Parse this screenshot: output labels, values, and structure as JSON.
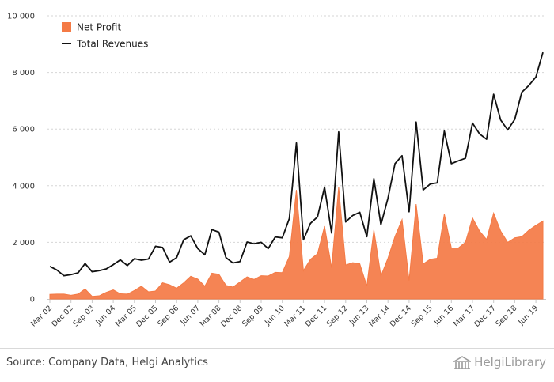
{
  "chart_data": {
    "type": "area",
    "x": [
      "Mar 02",
      "Jun 02",
      "Sep 02",
      "Dec 02",
      "Mar 03",
      "Jun 03",
      "Sep 03",
      "Dec 03",
      "Mar 04",
      "Jun 04",
      "Sep 04",
      "Dec 04",
      "Mar 05",
      "Jun 05",
      "Sep 05",
      "Dec 05",
      "Mar 06",
      "Jun 06",
      "Sep 06",
      "Dec 06",
      "Mar 07",
      "Jun 07",
      "Sep 07",
      "Dec 07",
      "Mar 08",
      "Jun 08",
      "Sep 08",
      "Dec 08",
      "Mar 09",
      "Jun 09",
      "Sep 09",
      "Dec 09",
      "Mar 10",
      "Jun 10",
      "Sep 10",
      "Dec 10",
      "Mar 11",
      "Jun 11",
      "Sep 11",
      "Dec 11",
      "Mar 12",
      "Jun 12",
      "Sep 12",
      "Dec 12",
      "Mar 13",
      "Jun 13",
      "Sep 13",
      "Dec 13",
      "Mar 14",
      "Jun 14",
      "Sep 14",
      "Dec 14",
      "Mar 15",
      "Jun 15",
      "Sep 15",
      "Dec 15",
      "Mar 16",
      "Jun 16",
      "Sep 16",
      "Dec 16",
      "Mar 17",
      "Jun 17",
      "Sep 17",
      "Dec 17",
      "Mar 18",
      "Jun 18",
      "Sep 18",
      "Dec 18",
      "Mar 19",
      "Jun 19",
      "Sep 19"
    ],
    "x_tick_labels": [
      "Mar 02",
      "Dec 02",
      "Sep 03",
      "Jun 04",
      "Mar 05",
      "Dec 05",
      "Sep 06",
      "Jun 07",
      "Mar 08",
      "Dec 08",
      "Sep 09",
      "Jun 10",
      "Mar 11",
      "Dec 11",
      "Sep 12",
      "Jun 13",
      "Mar 14",
      "Dec 14",
      "Sep 15",
      "Jun 16",
      "Mar 17",
      "Dec 17",
      "Sep 18",
      "Jun 19"
    ],
    "y_ticks": [
      0,
      2000,
      4000,
      6000,
      8000,
      10000
    ],
    "y_tick_labels": [
      "0",
      "2 000",
      "4 000",
      "6 000",
      "8 000",
      "10 000"
    ],
    "ylim": [
      0,
      10000
    ],
    "grid": "horizontal dashed",
    "legend_position": "top-left",
    "series": [
      {
        "name": "Net Profit",
        "type": "area",
        "color": "#f47a45",
        "values": [
          160,
          170,
          170,
          130,
          170,
          350,
          90,
          110,
          230,
          320,
          180,
          170,
          300,
          450,
          250,
          280,
          570,
          500,
          380,
          570,
          800,
          700,
          450,
          910,
          870,
          480,
          420,
          600,
          780,
          690,
          820,
          810,
          940,
          930,
          1500,
          3850,
          1000,
          1400,
          1600,
          2570,
          1100,
          3950,
          1200,
          1280,
          1240,
          460,
          2440,
          810,
          1440,
          2210,
          2800,
          650,
          3350,
          1240,
          1400,
          1440,
          3000,
          1800,
          1800,
          2000,
          2860,
          2400,
          2100,
          3030,
          2400,
          2000,
          2160,
          2200,
          2430,
          2600,
          2750
        ]
      },
      {
        "name": "Total Revenues",
        "type": "line",
        "color": "#111111",
        "values": [
          1150,
          1020,
          820,
          860,
          920,
          1250,
          960,
          1000,
          1060,
          1210,
          1380,
          1180,
          1420,
          1370,
          1410,
          1860,
          1820,
          1300,
          1460,
          2090,
          2230,
          1780,
          1560,
          2450,
          2360,
          1460,
          1270,
          1320,
          2010,
          1950,
          2000,
          1780,
          2190,
          2160,
          2840,
          5510,
          2090,
          2670,
          2900,
          3950,
          2330,
          5900,
          2720,
          2950,
          3060,
          2200,
          4250,
          2620,
          3560,
          4780,
          5060,
          3080,
          6250,
          3850,
          4060,
          4100,
          5930,
          4780,
          4880,
          4970,
          6210,
          5830,
          5640,
          7230,
          6320,
          5970,
          6340,
          7300,
          7540,
          7840,
          8710
        ]
      }
    ]
  },
  "footer": {
    "source": "Source: Company Data, Helgi Analytics",
    "logo_text": "HelgiLibrary"
  },
  "colors": {
    "grid": "#d6d6d6",
    "axis": "#c8c8c8"
  },
  "icons": {
    "logo": "helgi-library-building-icon"
  }
}
